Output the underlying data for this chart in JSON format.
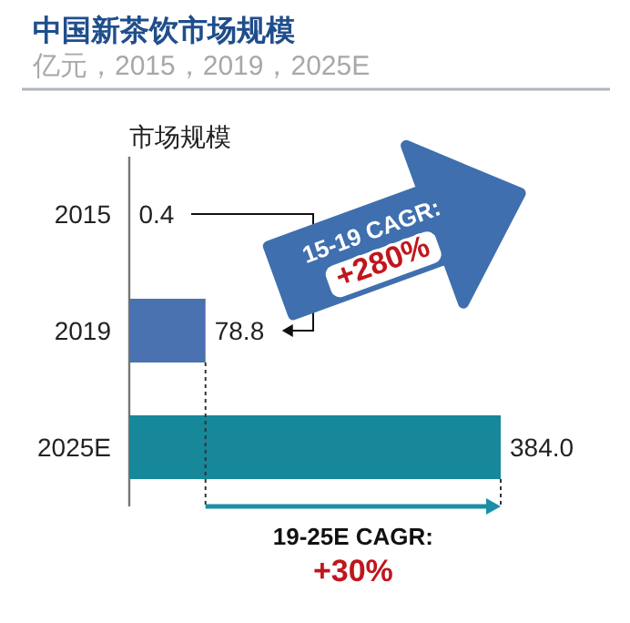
{
  "chart_data": {
    "type": "bar",
    "orientation": "horizontal",
    "title": "中国新茶饮市场规模",
    "subtitle": "亿元，2015，2019，2025E",
    "ylabel": "市场规模",
    "categories": [
      "2015",
      "2019",
      "2025E"
    ],
    "values": [
      0.4,
      78.8,
      384.0
    ],
    "colors": [
      "#4a72b0",
      "#4a72b0",
      "#17879a"
    ],
    "value_labels": [
      "0.4",
      "78.8",
      "384.0"
    ],
    "annotations": [
      "15-19 CAGR:",
      "+280%",
      "19-25E CAGR:",
      "+30%"
    ]
  }
}
